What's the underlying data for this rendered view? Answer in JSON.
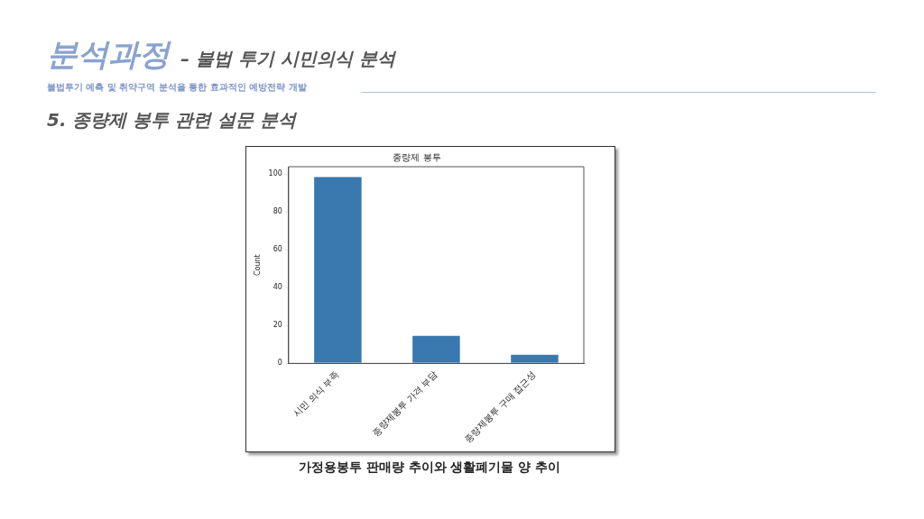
{
  "chart_data": {
    "type": "bar",
    "title": "종량제 봉투",
    "ylabel": "Count",
    "categories": [
      "시민 의식 부족",
      "종량제봉투 가격 부담",
      "종량제봉투 구매 접근성"
    ],
    "values": [
      99,
      15,
      5
    ],
    "color": "#3a78b0",
    "ylim": [
      0,
      104
    ],
    "yticks": [
      0,
      20,
      40,
      60,
      80,
      100
    ],
    "grid": false,
    "legend": false,
    "annotations": [
      "분석과정",
      "– 불법 투기 시민의식 분석",
      "불법투기 예측 및 취약구역 분석을 통한 효과적인 예방전략 개발",
      "5. 종량제 봉투 관련 설문 분석",
      "가정용봉투 판매량 추이와 생활폐기물 양 추이"
    ]
  }
}
